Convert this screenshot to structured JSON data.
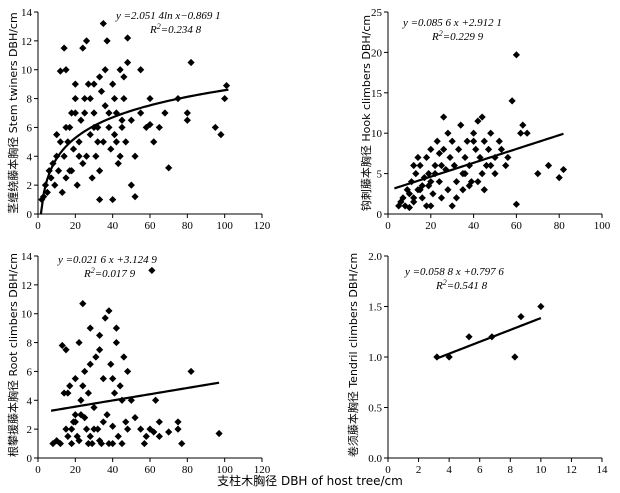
{
  "figure_xlabel": "支柱木胸径  DBH of host tree/cm",
  "chart_data": [
    {
      "type": "scatter",
      "name": "stem-twiners",
      "ylabel": "茎缠绕藤本胸径 Stem twiners DBH/cm",
      "xlim": [
        0,
        120
      ],
      "xticks": [
        0,
        20,
        40,
        60,
        80,
        100,
        120
      ],
      "ylim": [
        0,
        14
      ],
      "yticks": [
        0,
        2,
        4,
        6,
        8,
        10,
        12,
        14
      ],
      "equation": "y =2.051 4ln x−0.869 1",
      "r2": "R²=0.234 8",
      "fit": {
        "kind": "log",
        "a": 2.0514,
        "b": -0.8691,
        "from": 1.5,
        "to": 102
      },
      "points": [
        [
          2,
          1
        ],
        [
          3,
          1.2
        ],
        [
          4,
          2
        ],
        [
          5,
          1.5
        ],
        [
          6,
          3
        ],
        [
          7,
          2.5
        ],
        [
          8,
          3.5
        ],
        [
          9,
          2
        ],
        [
          10,
          4
        ],
        [
          11,
          3
        ],
        [
          12,
          5
        ],
        [
          13,
          1.5
        ],
        [
          14,
          4
        ],
        [
          15,
          2.5
        ],
        [
          16,
          5
        ],
        [
          17,
          6
        ],
        [
          18,
          3
        ],
        [
          19,
          4.5
        ],
        [
          20,
          7
        ],
        [
          21,
          2
        ],
        [
          22,
          5
        ],
        [
          23,
          6.5
        ],
        [
          24,
          3.5
        ],
        [
          25,
          8
        ],
        [
          26,
          4
        ],
        [
          27,
          9
        ],
        [
          28,
          5.5
        ],
        [
          29,
          2.5
        ],
        [
          30,
          7
        ],
        [
          31,
          4
        ],
        [
          32,
          6
        ],
        [
          33,
          3
        ],
        [
          34,
          8.5
        ],
        [
          35,
          5
        ],
        [
          36,
          7.5
        ],
        [
          37,
          12
        ],
        [
          38,
          6
        ],
        [
          39,
          4.5
        ],
        [
          40,
          9
        ],
        [
          41,
          5.5
        ],
        [
          42,
          7
        ],
        [
          43,
          3.5
        ],
        [
          44,
          10
        ],
        [
          45,
          6
        ],
        [
          46,
          8
        ],
        [
          47,
          5
        ],
        [
          48,
          12.2
        ],
        [
          50,
          6.5
        ],
        [
          52,
          4
        ],
        [
          55,
          7
        ],
        [
          58,
          6
        ],
        [
          60,
          8
        ],
        [
          62,
          5
        ],
        [
          65,
          6
        ],
        [
          70,
          3.2
        ],
        [
          75,
          8
        ],
        [
          80,
          6.5
        ],
        [
          82,
          10.5
        ],
        [
          95,
          6
        ],
        [
          98,
          5.5
        ],
        [
          100,
          8
        ],
        [
          101,
          8.9
        ],
        [
          12,
          9.9
        ],
        [
          14,
          11.5
        ],
        [
          26,
          12
        ],
        [
          35,
          13.2
        ],
        [
          24,
          11.5
        ],
        [
          20,
          8
        ],
        [
          18,
          7
        ],
        [
          30,
          9
        ],
        [
          15,
          6
        ],
        [
          10,
          5.5
        ],
        [
          17,
          3
        ],
        [
          22,
          4
        ],
        [
          28,
          8
        ],
        [
          32,
          5
        ],
        [
          36,
          10
        ],
        [
          42,
          5
        ],
        [
          44,
          4
        ],
        [
          46,
          9.5
        ],
        [
          48,
          10.5
        ],
        [
          50,
          2
        ],
        [
          40,
          1
        ],
        [
          45,
          6.5
        ],
        [
          15,
          10
        ],
        [
          20,
          9
        ],
        [
          25,
          7
        ],
        [
          30,
          6
        ],
        [
          33,
          9.5
        ],
        [
          38,
          7
        ],
        [
          41,
          8
        ],
        [
          52,
          1.2
        ],
        [
          55,
          10
        ],
        [
          60,
          6.2
        ],
        [
          68,
          7
        ],
        [
          80,
          7
        ],
        [
          33,
          1
        ]
      ]
    },
    {
      "type": "scatter",
      "name": "hook-climbers",
      "ylabel": "钩刺藤本胸径 Hook climbers DBH/cm",
      "xlim": [
        0,
        100
      ],
      "xticks": [
        0,
        20,
        40,
        60,
        80,
        100
      ],
      "ylim": [
        0,
        25
      ],
      "yticks": [
        0,
        5,
        10,
        15,
        20,
        25
      ],
      "equation": "y =0.085 6 x +2.912 1",
      "r2": "R²=0.229 9",
      "fit": {
        "kind": "linear",
        "a": 0.0856,
        "b": 2.9121,
        "from": 3,
        "to": 82
      },
      "points": [
        [
          5,
          1
        ],
        [
          6,
          1.5
        ],
        [
          7,
          2
        ],
        [
          8,
          1
        ],
        [
          9,
          3
        ],
        [
          10,
          2.5
        ],
        [
          11,
          4
        ],
        [
          12,
          1.5
        ],
        [
          13,
          5
        ],
        [
          14,
          3
        ],
        [
          15,
          6
        ],
        [
          16,
          2
        ],
        [
          17,
          4.5
        ],
        [
          18,
          7
        ],
        [
          19,
          3.5
        ],
        [
          20,
          8
        ],
        [
          21,
          2.5
        ],
        [
          22,
          5
        ],
        [
          23,
          9
        ],
        [
          24,
          4
        ],
        [
          25,
          6
        ],
        [
          26,
          12
        ],
        [
          27,
          5.5
        ],
        [
          28,
          3
        ],
        [
          29,
          7
        ],
        [
          30,
          9
        ],
        [
          31,
          6
        ],
        [
          32,
          4
        ],
        [
          33,
          8
        ],
        [
          34,
          11
        ],
        [
          35,
          5
        ],
        [
          36,
          7
        ],
        [
          37,
          9
        ],
        [
          38,
          6
        ],
        [
          39,
          4
        ],
        [
          40,
          10
        ],
        [
          41,
          8
        ],
        [
          42,
          11.5
        ],
        [
          43,
          7
        ],
        [
          44,
          5
        ],
        [
          45,
          9
        ],
        [
          46,
          6
        ],
        [
          47,
          8
        ],
        [
          48,
          10
        ],
        [
          50,
          7
        ],
        [
          52,
          9
        ],
        [
          55,
          6
        ],
        [
          58,
          14
        ],
        [
          60,
          19.7
        ],
        [
          62,
          10
        ],
        [
          63,
          11
        ],
        [
          65,
          10
        ],
        [
          70,
          5
        ],
        [
          75,
          6
        ],
        [
          80,
          4.5
        ],
        [
          82,
          5.5
        ],
        [
          60,
          1.2
        ],
        [
          30,
          1
        ],
        [
          20,
          1
        ],
        [
          10,
          0.8
        ],
        [
          14,
          7
        ],
        [
          22,
          6
        ],
        [
          26,
          8
        ],
        [
          28,
          10
        ],
        [
          35,
          3
        ],
        [
          40,
          9
        ],
        [
          44,
          12
        ],
        [
          48,
          6
        ],
        [
          53,
          8
        ],
        [
          56,
          7
        ],
        [
          15,
          3
        ],
        [
          18,
          1
        ],
        [
          25,
          2
        ],
        [
          32,
          2
        ],
        [
          38,
          3.5
        ],
        [
          12,
          2
        ],
        [
          16,
          3.5
        ],
        [
          19,
          5
        ],
        [
          24,
          7.5
        ],
        [
          36,
          5
        ],
        [
          42,
          4
        ],
        [
          50,
          5
        ],
        [
          45,
          3
        ],
        [
          12,
          6
        ],
        [
          20,
          4
        ]
      ]
    },
    {
      "type": "scatter",
      "name": "root-climbers",
      "ylabel": "根攀援藤本胸径 Root climbers DBH/cm",
      "xlim": [
        0,
        120
      ],
      "xticks": [
        0,
        20,
        40,
        60,
        80,
        100,
        120
      ],
      "ylim": [
        0,
        14
      ],
      "yticks": [
        0,
        2,
        4,
        6,
        8,
        10,
        12,
        14
      ],
      "equation": "y =0.021 6 x +3.124 9",
      "r2": "R²=0.017 9",
      "fit": {
        "kind": "linear",
        "a": 0.0216,
        "b": 3.1249,
        "from": 7,
        "to": 97
      },
      "points": [
        [
          8,
          1
        ],
        [
          10,
          1.2
        ],
        [
          12,
          1
        ],
        [
          13,
          7.8
        ],
        [
          14,
          4.5
        ],
        [
          15,
          2
        ],
        [
          16,
          1.5
        ],
        [
          17,
          5
        ],
        [
          18,
          1
        ],
        [
          19,
          2.5
        ],
        [
          20,
          5.5
        ],
        [
          21,
          1.5
        ],
        [
          22,
          8
        ],
        [
          23,
          3
        ],
        [
          24,
          10.7
        ],
        [
          25,
          6
        ],
        [
          26,
          2
        ],
        [
          27,
          4.5
        ],
        [
          28,
          9
        ],
        [
          29,
          1
        ],
        [
          30,
          3.5
        ],
        [
          31,
          7
        ],
        [
          32,
          2
        ],
        [
          33,
          8.5
        ],
        [
          34,
          1
        ],
        [
          35,
          5.5
        ],
        [
          36,
          9.7
        ],
        [
          37,
          3
        ],
        [
          38,
          10.2
        ],
        [
          39,
          6.5
        ],
        [
          40,
          2.2
        ],
        [
          41,
          4.5
        ],
        [
          42,
          8
        ],
        [
          43,
          1.5
        ],
        [
          44,
          5
        ],
        [
          45,
          1
        ],
        [
          46,
          7
        ],
        [
          47,
          2.5
        ],
        [
          48,
          6
        ],
        [
          50,
          4
        ],
        [
          52,
          2.8
        ],
        [
          55,
          2
        ],
        [
          58,
          1.5
        ],
        [
          60,
          2
        ],
        [
          61,
          13
        ],
        [
          62,
          1.8
        ],
        [
          65,
          2.5
        ],
        [
          70,
          1.8
        ],
        [
          75,
          2
        ],
        [
          77,
          1
        ],
        [
          82,
          6
        ],
        [
          97,
          1.7
        ],
        [
          18,
          2
        ],
        [
          20,
          3
        ],
        [
          22,
          1.2
        ],
        [
          25,
          2.8
        ],
        [
          28,
          1.5
        ],
        [
          30,
          2
        ],
        [
          33,
          1.2
        ],
        [
          35,
          2.5
        ],
        [
          24,
          5
        ],
        [
          28,
          6.5
        ],
        [
          33,
          7.5
        ],
        [
          40,
          5.5
        ],
        [
          42,
          9
        ],
        [
          45,
          4
        ],
        [
          48,
          2
        ],
        [
          38,
          1
        ],
        [
          20,
          2.5
        ],
        [
          16,
          4.5
        ],
        [
          15,
          7.5
        ],
        [
          23,
          4
        ],
        [
          27,
          1
        ],
        [
          40,
          1
        ],
        [
          57,
          1
        ],
        [
          63,
          4
        ],
        [
          65,
          1.5
        ],
        [
          75,
          2.5
        ]
      ]
    },
    {
      "type": "scatter",
      "name": "tendril-climbers",
      "ylabel": "卷须藤本胸径 Tendril climbers DBH/cm",
      "xlim": [
        0,
        14
      ],
      "xticks": [
        0,
        2,
        4,
        6,
        8,
        10,
        12,
        14
      ],
      "ylim": [
        0.0,
        2.0
      ],
      "yticks": [
        0.0,
        0.5,
        1.0,
        1.5,
        2.0
      ],
      "equation": "y =0.058 8 x +0.797 6",
      "r2": "R²=0.541 8",
      "fit": {
        "kind": "linear",
        "a": 0.0588,
        "b": 0.7976,
        "from": 3.2,
        "to": 10
      },
      "points": [
        [
          3.2,
          1.0
        ],
        [
          4.0,
          1.0
        ],
        [
          5.3,
          1.2
        ],
        [
          6.8,
          1.2
        ],
        [
          8.3,
          1.0
        ],
        [
          8.7,
          1.4
        ],
        [
          10.0,
          1.5
        ]
      ]
    }
  ]
}
